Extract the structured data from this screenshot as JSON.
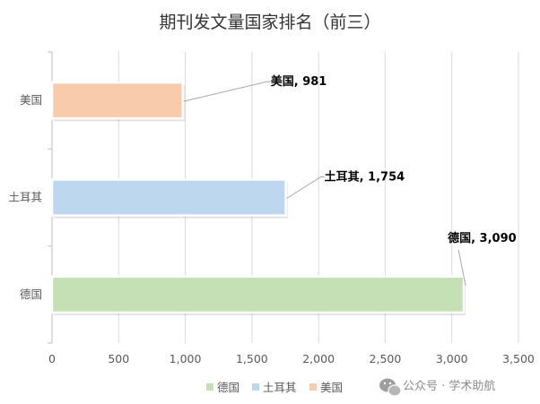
{
  "chart_data": {
    "type": "bar",
    "orientation": "horizontal",
    "title": "期刊发文量国家排名（前三）",
    "categories": [
      "德国",
      "土耳其",
      "美国"
    ],
    "series": [
      {
        "name": "德国",
        "values": [
          3090,
          null,
          null
        ],
        "color": "#c5e0b4"
      },
      {
        "name": "土耳其",
        "values": [
          null,
          1754,
          null
        ],
        "color": "#bdd7ee"
      },
      {
        "name": "美国",
        "values": [
          null,
          null,
          981
        ],
        "color": "#f8cbad"
      }
    ],
    "data_labels": [
      "德国, 3,090",
      "土耳其, 1,754",
      "美国, 981"
    ],
    "xlim": [
      0,
      3500
    ],
    "x_ticks": [
      "0",
      "500",
      "1,000",
      "1,500",
      "2,000",
      "2,500",
      "3,000",
      "3,500"
    ],
    "grid": true,
    "legend_position": "bottom"
  },
  "watermark": {
    "text": "公众号 · 学术助航",
    "icon": "wechat-icon"
  }
}
